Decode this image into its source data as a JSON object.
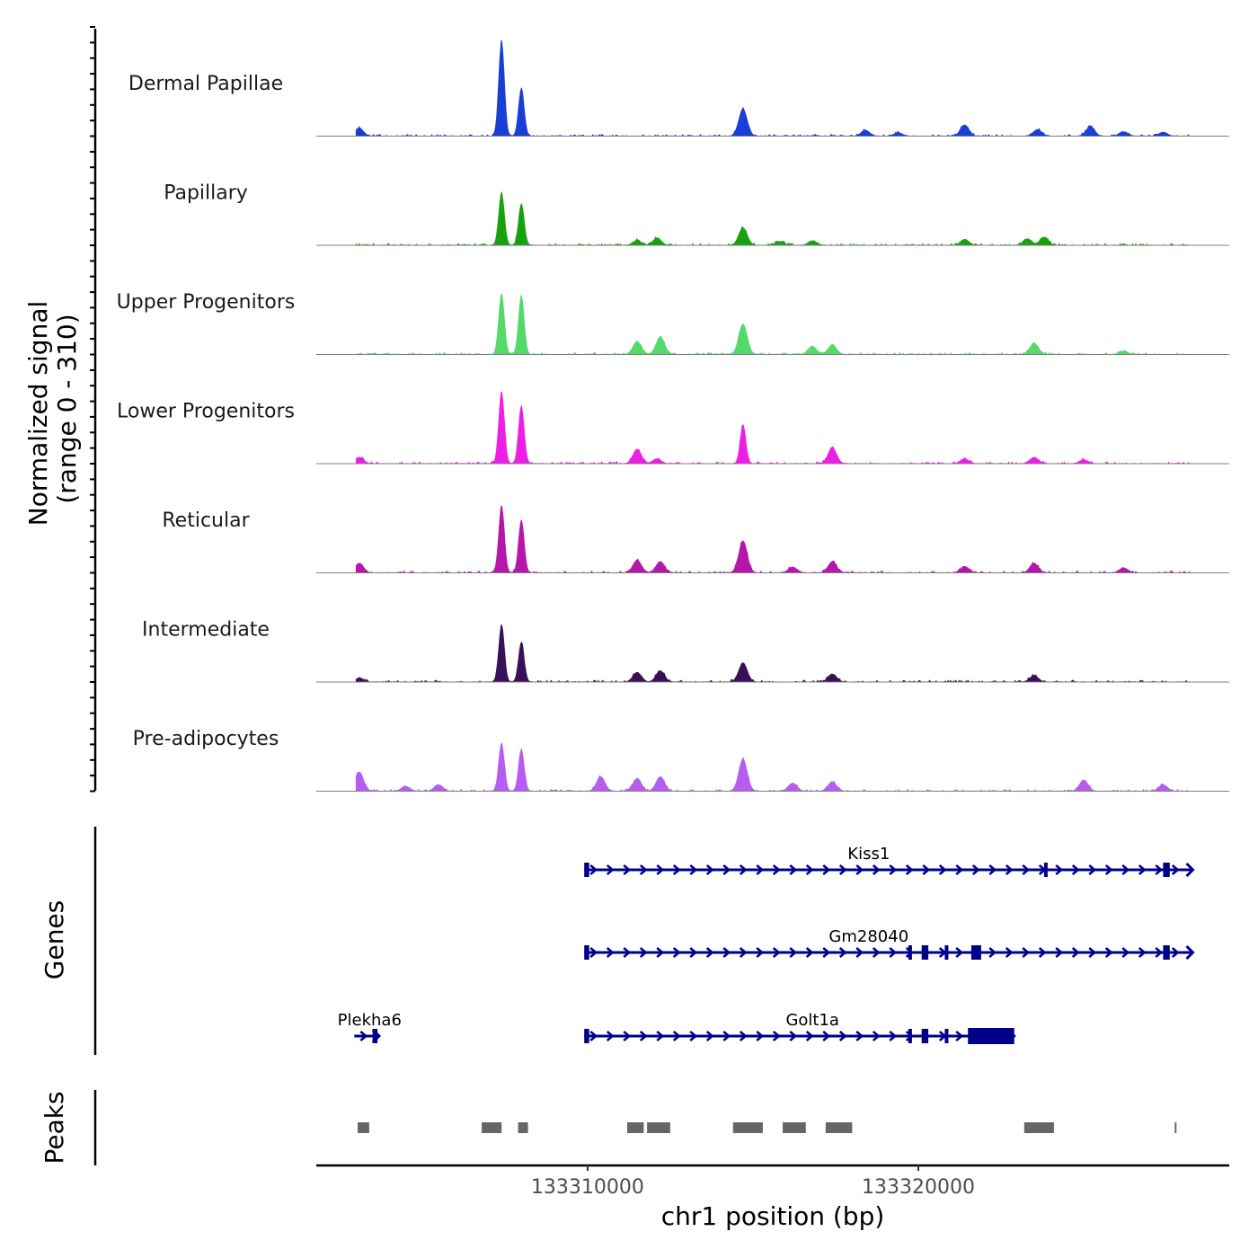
{
  "chart_data": {
    "type": "area",
    "chromosome": "chr1",
    "xlabel": "chr1 position (bp)",
    "ylabel": "Normalized signal",
    "ylabel_range": "(range 0 - 310)",
    "xlim": [
      133301800,
      133329400
    ],
    "ylim": [
      0,
      310
    ],
    "x_ticks": [
      {
        "value": 133310000,
        "label": "133310000"
      },
      {
        "value": 133320000,
        "label": "133320000"
      }
    ],
    "series": [
      {
        "name": "Dermal Papillae",
        "color": "#1a3fd6",
        "peaks": [
          [
            133303100,
            25
          ],
          [
            133307400,
            300
          ],
          [
            133308000,
            150
          ],
          [
            133314700,
            85
          ],
          [
            133318400,
            18
          ],
          [
            133319400,
            10
          ],
          [
            133321400,
            35
          ],
          [
            133323600,
            20
          ],
          [
            133325200,
            30
          ],
          [
            133326200,
            14
          ],
          [
            133327400,
            12
          ]
        ]
      },
      {
        "name": "Papillary",
        "color": "#17a10f",
        "peaks": [
          [
            133307400,
            165
          ],
          [
            133308000,
            130
          ],
          [
            133311500,
            15
          ],
          [
            133312100,
            22
          ],
          [
            133314700,
            55
          ],
          [
            133315800,
            12
          ],
          [
            133316800,
            14
          ],
          [
            133321400,
            18
          ],
          [
            133323300,
            20
          ],
          [
            133323800,
            25
          ]
        ]
      },
      {
        "name": "Upper Progenitors",
        "color": "#55d96a",
        "peaks": [
          [
            133307400,
            190
          ],
          [
            133308000,
            185
          ],
          [
            133311500,
            40
          ],
          [
            133312200,
            55
          ],
          [
            133314700,
            95
          ],
          [
            133316800,
            25
          ],
          [
            133317400,
            30
          ],
          [
            133323500,
            35
          ],
          [
            133326200,
            10
          ]
        ]
      },
      {
        "name": "Lower Progenitors",
        "color": "#ef1ee6",
        "peaks": [
          [
            133303100,
            20
          ],
          [
            133307400,
            225
          ],
          [
            133308000,
            180
          ],
          [
            133311500,
            45
          ],
          [
            133312100,
            15
          ],
          [
            133314700,
            120
          ],
          [
            133317400,
            50
          ],
          [
            133321400,
            15
          ],
          [
            133323500,
            20
          ],
          [
            133325000,
            12
          ]
        ]
      },
      {
        "name": "Reticular",
        "color": "#b518a8",
        "peaks": [
          [
            133303100,
            30
          ],
          [
            133307400,
            210
          ],
          [
            133308000,
            165
          ],
          [
            133311500,
            40
          ],
          [
            133312200,
            35
          ],
          [
            133314700,
            100
          ],
          [
            133316200,
            18
          ],
          [
            133317400,
            35
          ],
          [
            133321400,
            20
          ],
          [
            133323500,
            30
          ],
          [
            133326200,
            15
          ]
        ]
      },
      {
        "name": "Intermediate",
        "color": "#3a0f5a",
        "peaks": [
          [
            133303100,
            12
          ],
          [
            133307400,
            180
          ],
          [
            133308000,
            125
          ],
          [
            133311500,
            30
          ],
          [
            133312200,
            35
          ],
          [
            133314700,
            60
          ],
          [
            133317400,
            25
          ],
          [
            133323500,
            20
          ]
        ]
      },
      {
        "name": "Pre-adipocytes",
        "color": "#b65cf0",
        "peaks": [
          [
            133303100,
            60
          ],
          [
            133304500,
            15
          ],
          [
            133305500,
            20
          ],
          [
            133307400,
            150
          ],
          [
            133308000,
            130
          ],
          [
            133310400,
            45
          ],
          [
            133311500,
            40
          ],
          [
            133312200,
            45
          ],
          [
            133314700,
            100
          ],
          [
            133316200,
            25
          ],
          [
            133317400,
            30
          ],
          [
            133325000,
            35
          ],
          [
            133327400,
            20
          ]
        ]
      }
    ],
    "genes": [
      {
        "name": "Kiss1",
        "strand": "+",
        "start": 133309900,
        "end": 133328300,
        "row": 1,
        "exons": [
          [
            133309900,
            133310050
          ],
          [
            133323800,
            133323900
          ],
          [
            133327400,
            133327600
          ]
        ]
      },
      {
        "name": "Gm28040",
        "strand": "+",
        "start": 133309900,
        "end": 133328300,
        "row": 2,
        "exons": [
          [
            133309900,
            133310050
          ],
          [
            133319700,
            133319800
          ],
          [
            133320100,
            133320300
          ],
          [
            133320800,
            133320900
          ],
          [
            133321600,
            133321900
          ],
          [
            133327400,
            133327600
          ]
        ]
      },
      {
        "name": "Golt1a",
        "strand": "+",
        "start": 133309900,
        "end": 133322900,
        "row": 3,
        "exons": [
          [
            133309900,
            133310050
          ],
          [
            133319700,
            133319800
          ],
          [
            133320100,
            133320300
          ],
          [
            133320800,
            133320900
          ],
          [
            133321500,
            133322900
          ]
        ]
      },
      {
        "name": "Plekha6",
        "strand": "+",
        "start": 133302950,
        "end": 133303700,
        "row": 3,
        "exons": [
          [
            133303500,
            133303650
          ]
        ]
      }
    ],
    "peaks": [
      [
        133303050,
        133303400
      ],
      [
        133306800,
        133307400
      ],
      [
        133307900,
        133308200
      ],
      [
        133311200,
        133311700
      ],
      [
        133311800,
        133312500
      ],
      [
        133314400,
        133315300
      ],
      [
        133315900,
        133316600
      ],
      [
        133317200,
        133318000
      ],
      [
        133323200,
        133324100
      ],
      [
        133327750,
        133327800
      ]
    ],
    "panels": {
      "genes_label": "Genes",
      "peaks_label": "Peaks"
    }
  }
}
